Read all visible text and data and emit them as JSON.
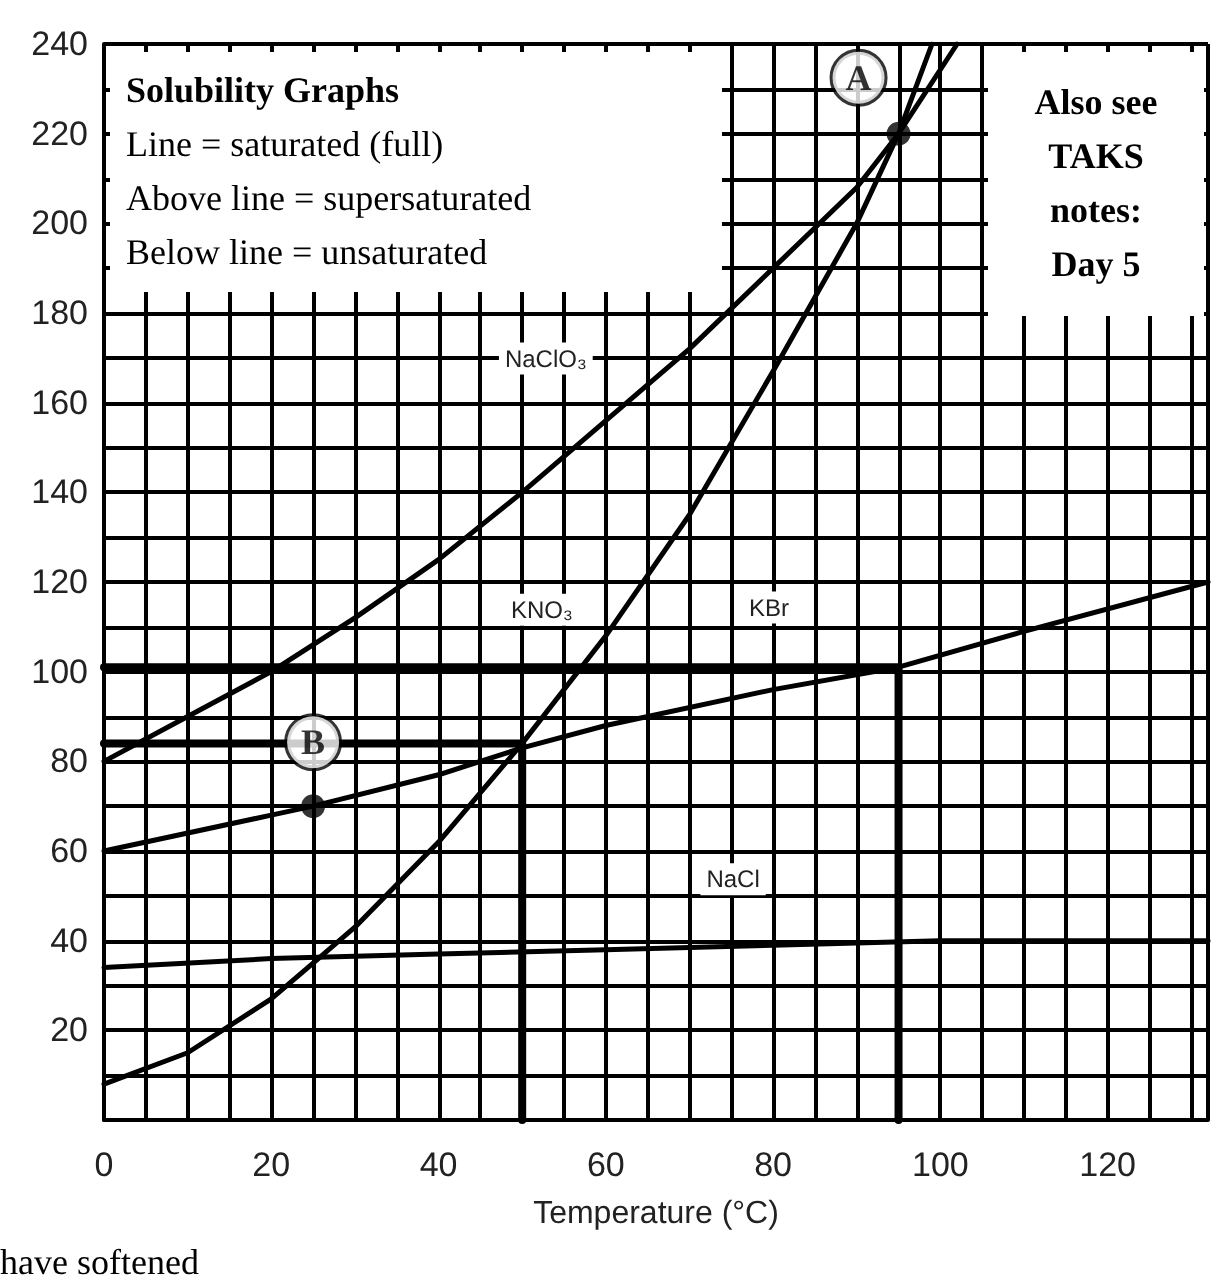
{
  "chart_data": {
    "type": "line",
    "title": "Solubility Graphs",
    "xlabel": "Temperature (°C)",
    "xlim": [
      0,
      132
    ],
    "xticks": [
      0,
      20,
      40,
      60,
      80,
      100,
      120
    ],
    "ylim": [
      0,
      240
    ],
    "yticks": [
      20,
      40,
      60,
      80,
      100,
      120,
      140,
      160,
      180,
      200,
      220,
      240
    ],
    "grid": true,
    "legend": false,
    "marker": "none",
    "line_style": "solid",
    "annotations": [
      "Line = saturated (full)",
      "Above line = supersaturated",
      "Below line = unsaturated",
      "Also see TAKS notes: Day 5",
      "have softened",
      {
        "text": "A",
        "x": 95,
        "y": 220
      },
      {
        "text": "B",
        "x": 25,
        "y": 70
      }
    ],
    "series": [
      {
        "name": "NaClO₃",
        "color": "#000000",
        "x": [
          0,
          10,
          20,
          30,
          40,
          50,
          60,
          70,
          80,
          90,
          95,
          102
        ],
        "values": [
          80,
          90,
          100,
          112,
          125,
          140,
          156,
          172,
          190,
          208,
          220,
          240
        ]
      },
      {
        "name": "KNO₃",
        "color": "#000000",
        "x": [
          0,
          10,
          20,
          25,
          30,
          40,
          50,
          60,
          70,
          80,
          90,
          95,
          99
        ],
        "values": [
          8,
          15,
          27,
          35,
          43,
          62,
          84,
          108,
          135,
          167,
          200,
          220,
          240
        ]
      },
      {
        "name": "KBr",
        "color": "#000000",
        "x": [
          0,
          20,
          25,
          40,
          50,
          60,
          80,
          95,
          110,
          132
        ],
        "values": [
          60,
          68,
          70,
          77,
          83,
          88,
          96,
          101,
          109,
          120
        ]
      },
      {
        "name": "NaCl",
        "color": "#000000",
        "x": [
          0,
          20,
          40,
          60,
          80,
          100,
          132
        ],
        "values": [
          34,
          36,
          37,
          38,
          39,
          40,
          40
        ]
      },
      {
        "type": "line",
        "color": "#000000",
        "x": [
          0,
          95,
          95
        ],
        "values": [
          101,
          101,
          0
        ]
      },
      {
        "type": "line",
        "color": "#000000",
        "x": [
          0,
          50,
          50
        ],
        "values": [
          84,
          84,
          0
        ]
      },
      {
        "type": "scatter",
        "marker": "circle",
        "color": "#000000",
        "x": [
          25,
          95
        ],
        "values": [
          70,
          220
        ]
      }
    ]
  }
}
